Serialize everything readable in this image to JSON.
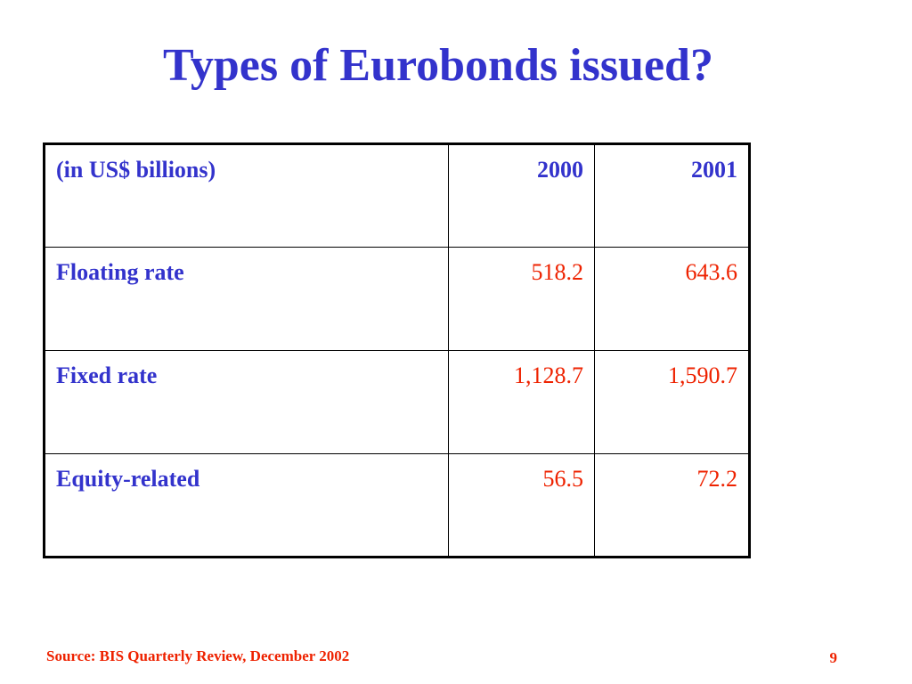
{
  "slide": {
    "title": "Types of Eurobonds issued?",
    "source": "Source: BIS Quarterly Review, December 2002",
    "page_number": "9"
  },
  "colors": {
    "heading_blue": "#3333cc",
    "value_red": "#ee2200",
    "border": "#000000",
    "background": "#ffffff"
  },
  "table": {
    "header": {
      "label": "(in US$ billions)",
      "col_2000": "2000",
      "col_2001": "2001"
    },
    "rows": [
      {
        "label": "Floating rate",
        "v2000": "518.2",
        "v2001": "643.6"
      },
      {
        "label": "Fixed rate",
        "v2000": "1,128.7",
        "v2001": "1,590.7"
      },
      {
        "label": "Equity-related",
        "v2000": "56.5",
        "v2001": "72.2"
      }
    ]
  }
}
